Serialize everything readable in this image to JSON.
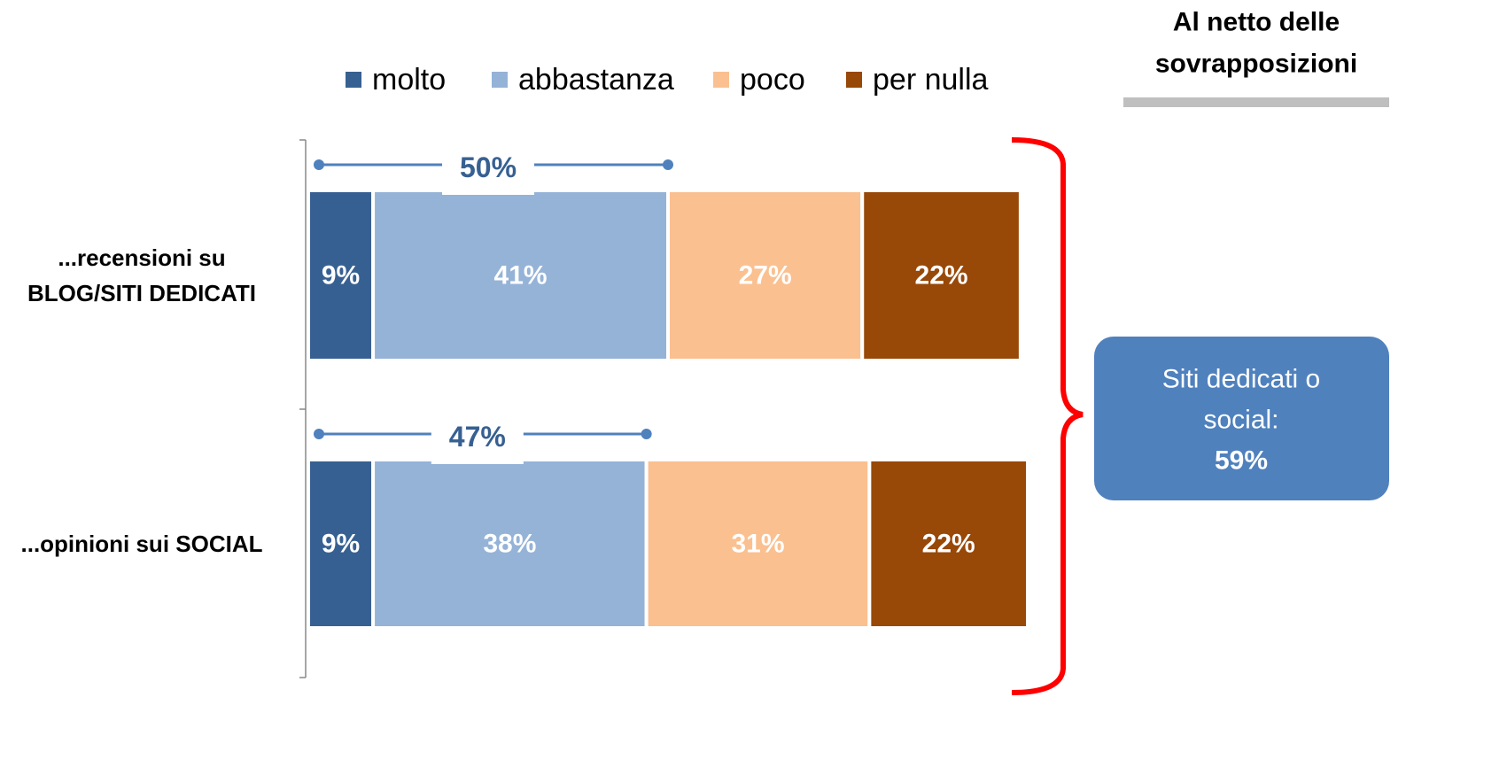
{
  "chart_data": {
    "type": "stacked_barh",
    "header": [
      "Al netto delle",
      "sovrapposizioni"
    ],
    "categories": [
      "...recensioni su\nBLOG/SITI DEDICATI",
      "...opinioni sui SOCIAL"
    ],
    "series": [
      {
        "name": "molto",
        "color": "#376092",
        "values": [
          9,
          9
        ],
        "value_labels": [
          "9%",
          "9%"
        ]
      },
      {
        "name": "abbastanza",
        "color": "#95b3d7",
        "values": [
          41,
          38
        ],
        "value_labels": [
          "41%",
          "38%"
        ]
      },
      {
        "name": "poco",
        "color": "#fac090",
        "values": [
          27,
          31
        ],
        "value_labels": [
          "27%",
          "31%"
        ]
      },
      {
        "name": "per nulla",
        "color": "#984807",
        "values": [
          22,
          22
        ],
        "value_labels": [
          "22%",
          "22%"
        ]
      }
    ],
    "subtotals": [
      50,
      47
    ],
    "subtotal_labels": [
      "50%",
      "47%"
    ],
    "callout": [
      "Siti dedicati o",
      "social:",
      "59%"
    ],
    "xlim": [
      0,
      100
    ]
  }
}
